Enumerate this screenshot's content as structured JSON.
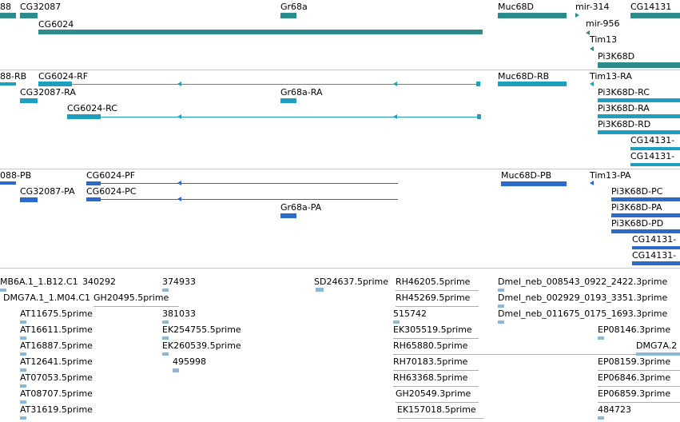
{
  "colors": {
    "genes": "#2e8b8b",
    "mrna": "#1e9fbf",
    "cds": "#2a6acb",
    "est": "#8ab8d8",
    "separator": "#c8c8c8"
  },
  "tracks": {
    "genes": {
      "labels": [
        "88",
        "CG32087",
        "CG6024",
        "Gr68a",
        "Muc68D",
        "mir-314",
        "mir-956",
        "Tim13",
        "Pi3K68D",
        "CG14131"
      ]
    },
    "transcripts": {
      "labels": [
        "88-RB",
        "CG6024-RF",
        "CG32087-RA",
        "CG6024-RC",
        "Gr68a-RA",
        "Muc68D-RB",
        "Tim13-RA",
        "Pi3K68D-RC",
        "Pi3K68D-RA",
        "Pi3K68D-RD",
        "CG14131-",
        "CG14131-"
      ]
    },
    "proteins": {
      "labels": [
        "088-PB",
        "CG6024-PF",
        "CG32087-PA",
        "CG6024-PC",
        "Gr68a-PA",
        "Muc68D-PB",
        "Tim13-PA",
        "Pi3K68D-PC",
        "Pi3K68D-PA",
        "Pi3K68D-PD",
        "CG14131-",
        "CG14131-"
      ]
    },
    "ests": {
      "labels": [
        "MB6A.1_1.B12.C1",
        "340292",
        "374933",
        "SD24637.5prime",
        "RH46205.5prime",
        "Dmel_neb_008543_0922_2422.3prime",
        "DMG7A.1_1.M04.C1",
        "GH20495.5prime",
        "RH45269.5prime",
        "Dmel_neb_002929_0193_3351.3prime",
        "AT11675.5prime",
        "381033",
        "515742",
        "Dmel_neb_011675_0175_1693.3prime",
        "AT16611.5prime",
        "EK254755.5prime",
        "EK305519.5prime",
        "EP08146.3prime",
        "AT16887.5prime",
        "EK260539.5prime",
        "RH65880.5prime",
        "DMG7A.2",
        "AT12641.5prime",
        "495998",
        "RH70183.5prime",
        "EP08159.3prime",
        "AT07053.5prime",
        "RH63368.5prime",
        "EP06846.3prime",
        "AT08707.5prime",
        "GH20549.3prime",
        "EP06859.3prime",
        "AT31619.5prime",
        "EK157018.5prime",
        "484723"
      ]
    }
  }
}
